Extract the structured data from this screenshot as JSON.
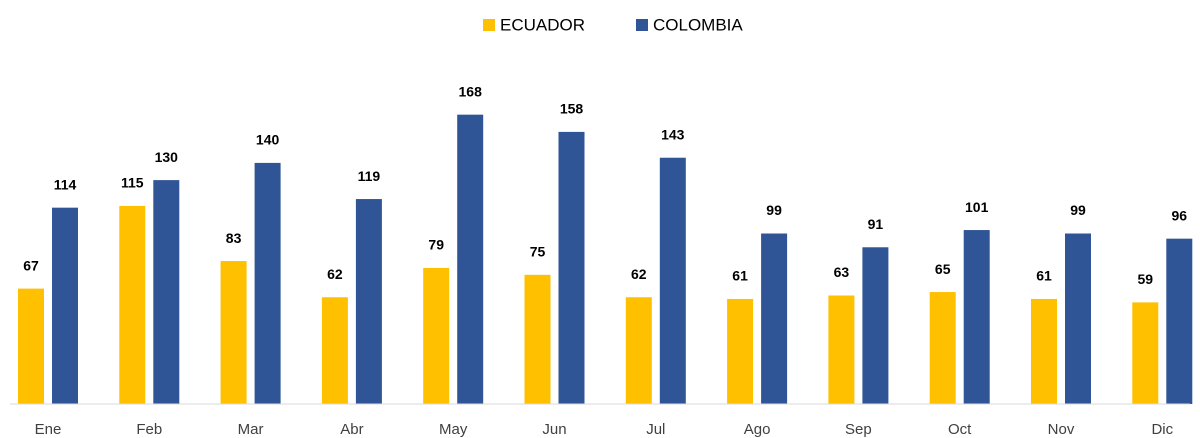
{
  "chart_data": {
    "type": "bar",
    "categories": [
      "Ene",
      "Feb",
      "Mar",
      "Abr",
      "May",
      "Jun",
      "Jul",
      "Ago",
      "Sep",
      "Oct",
      "Nov",
      "Dic"
    ],
    "series": [
      {
        "name": "ECUADOR",
        "color": "#FFC000",
        "values": [
          67,
          115,
          83,
          62,
          79,
          75,
          62,
          61,
          63,
          65,
          61,
          59
        ]
      },
      {
        "name": "COLOMBIA",
        "color": "#2F5597",
        "values": [
          114,
          130,
          140,
          119,
          168,
          158,
          143,
          99,
          91,
          101,
          99,
          96
        ]
      }
    ],
    "ylim": [
      0,
      180
    ],
    "legend": "top"
  }
}
